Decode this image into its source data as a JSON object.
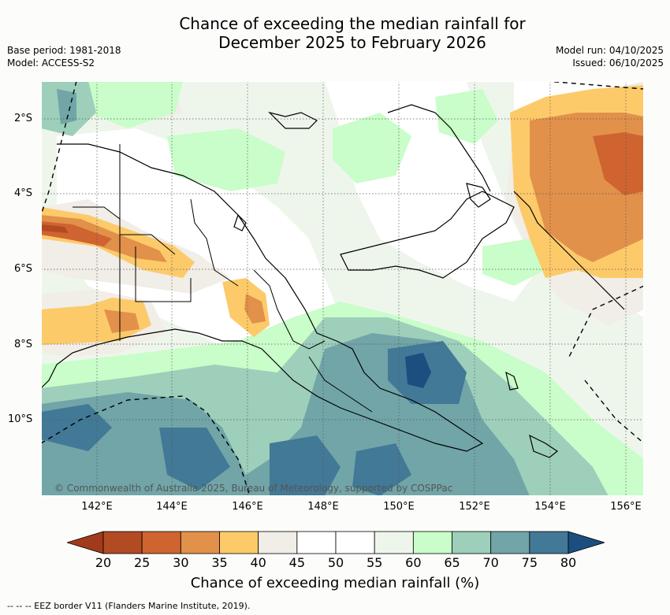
{
  "title": {
    "line1": "Chance of exceeding the median rainfall for",
    "line2": "December 2025 to February 2026"
  },
  "meta": {
    "base_period": "Base period: 1981-2018",
    "model": "Model: ACCESS-S2",
    "model_run": "Model run: 04/10/2025",
    "issued": "Issued: 06/10/2025"
  },
  "axes": {
    "lat_labels": [
      "2°S",
      "4°S",
      "6°S",
      "8°S",
      "10°S"
    ],
    "lon_labels": [
      "142°E",
      "144°E",
      "146°E",
      "148°E",
      "150°E",
      "152°E",
      "154°E",
      "156°E"
    ]
  },
  "copyright": "© Commonwealth of Australia 2025, Bureau of Meteorology, supported by COSPPac",
  "colorbar": {
    "ticks": [
      "20",
      "25",
      "30",
      "35",
      "40",
      "45",
      "50",
      "55",
      "60",
      "65",
      "70",
      "75",
      "80"
    ],
    "colors": [
      "#a23b1c",
      "#b24a24",
      "#cf6430",
      "#e2914a",
      "#fdca6a",
      "#f1ede7",
      "#ffffff",
      "#ffffff",
      "#eef6ec",
      "#c9fdc9",
      "#9dcfba",
      "#71a5a8",
      "#427996",
      "#1c4f80"
    ],
    "title": "Chance of exceeding median rainfall (%)"
  },
  "eez_note": "--  --  -- EEZ border V11 (Flanders Marine Institute, 2019).",
  "palette": {
    "border": "#000000",
    "grid": "#555555"
  }
}
